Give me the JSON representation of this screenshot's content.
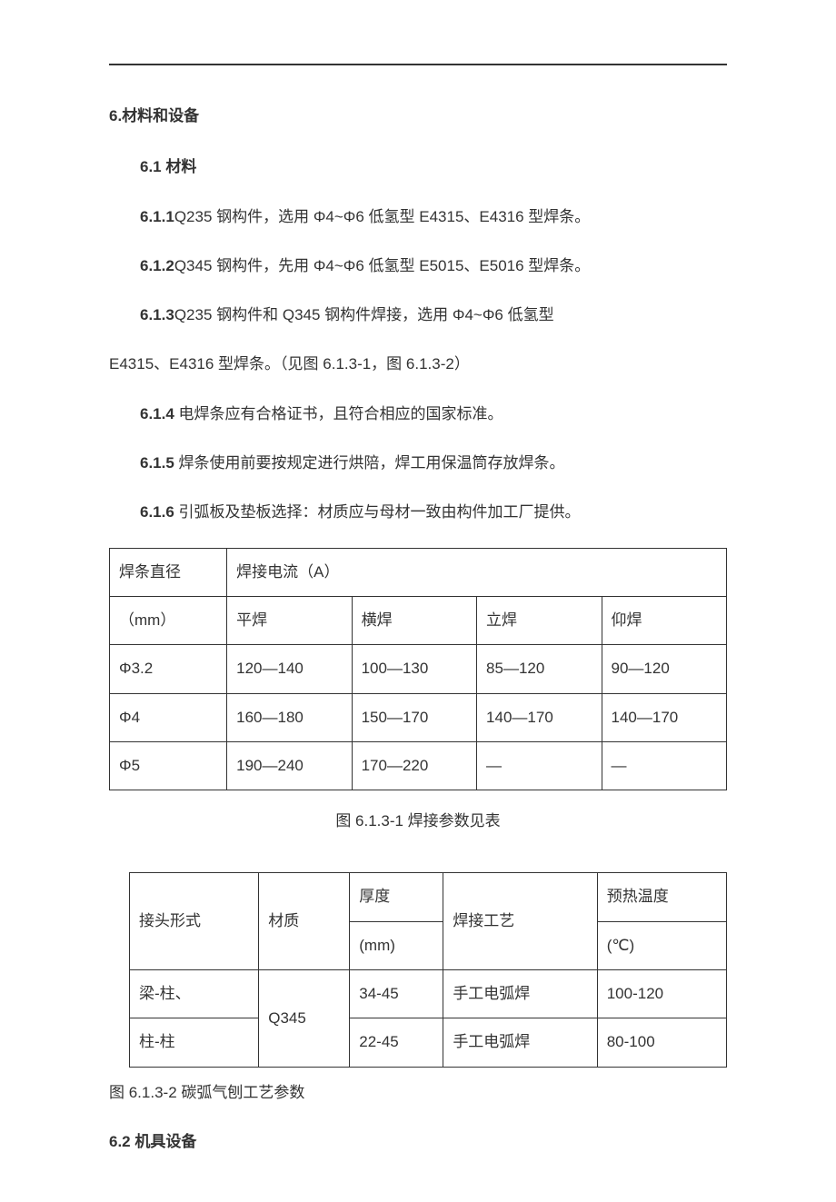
{
  "headings": {
    "h6": "6.材料和设备",
    "h6_1": "6.1 材料",
    "h6_2": "6.2 机具设备"
  },
  "paragraphs": {
    "p611_num": "6.1.1",
    "p611_text": "Q235 钢构件，选用 Φ4~Φ6 低氢型 E4315、E4316 型焊条。",
    "p612_num": "6.1.2",
    "p612_text": "Q345 钢构件，先用 Φ4~Φ6 低氢型 E5015、E5016 型焊条。",
    "p613_num": "6.1.3",
    "p613_text": "Q235 钢构件和 Q345 钢构件焊接，选用 Φ4~Φ6 低氢型",
    "p613_cont": "E4315、E4316 型焊条。（见图 6.1.3-1，图 6.1.3-2）",
    "p614_num": "6.1.4",
    "p614_text": " 电焊条应有合格证书，且符合相应的国家标准。",
    "p615_num": "6.1.5",
    "p615_text": " 焊条使用前要按规定进行烘陪，焊工用保温筒存放焊条。",
    "p616_num": "6.1.6",
    "p616_text": " 引弧板及垫板选择：材质应与母材一致由构件加工厂提供。"
  },
  "table1": {
    "header_col1": "焊条直径",
    "header_col2": "焊接电流（A）",
    "unit": "（mm）",
    "cols": [
      "平焊",
      "横焊",
      "立焊",
      "仰焊"
    ],
    "rows": [
      {
        "d": "Φ3.2",
        "v": [
          "120—140",
          "100—130",
          "85—120",
          "90—120"
        ]
      },
      {
        "d": "Φ4",
        "v": [
          "160—180",
          "150—170",
          "140—170",
          "140—170"
        ]
      },
      {
        "d": "Φ5",
        "v": [
          "190—240",
          "170—220",
          "—",
          "—"
        ]
      }
    ],
    "caption": "图 6.1.3-1 焊接参数见表"
  },
  "table2": {
    "headers": {
      "c1": "接头形式",
      "c2": "材质",
      "c3a": "厚度",
      "c3b": "(mm)",
      "c4": "焊接工艺",
      "c5a": "预热温度",
      "c5b": "(℃)"
    },
    "rows": [
      {
        "joint": "梁-柱、",
        "mat": "Q345",
        "thk": "34-45",
        "proc": "手工电弧焊",
        "temp": "100-120"
      },
      {
        "joint": "柱-柱",
        "thk": "22-45",
        "proc": "手工电弧焊",
        "temp": "80-100"
      }
    ],
    "caption": "图 6.1.3-2 碳弧气刨工艺参数"
  }
}
